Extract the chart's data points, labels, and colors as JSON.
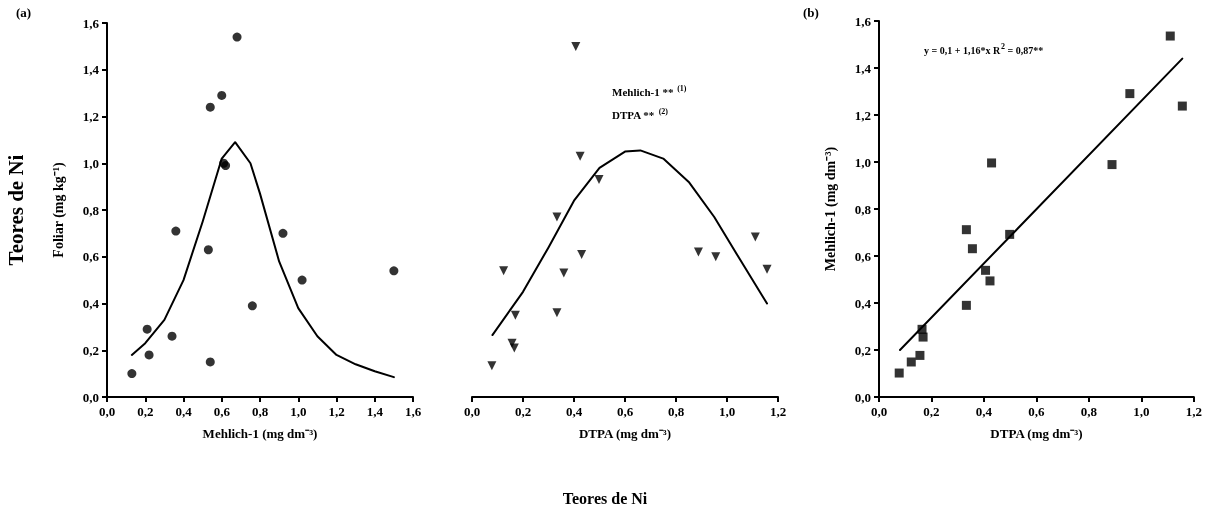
{
  "chart_data": [
    {
      "type": "scatter",
      "ylabel": "Foliar (mg kg⁻¹)",
      "xlabel": "Mehlich-1 (mg dm⁻³)",
      "annotations": [
        "(a)",
        "Teores de Ni"
      ],
      "xlim": [
        0,
        1.6
      ],
      "xticks": [
        {
          "value": 0,
          "label": "0,0"
        },
        {
          "value": 0.2,
          "label": "0,2"
        },
        {
          "value": 0.4,
          "label": "0,4"
        },
        {
          "value": 0.6,
          "label": "0,6"
        },
        {
          "value": 0.8,
          "label": "0,8"
        },
        {
          "value": 1.0,
          "label": "1,0"
        },
        {
          "value": 1.2,
          "label": "1,2"
        },
        {
          "value": 1.4,
          "label": "1,4"
        },
        {
          "value": 1.6,
          "label": "1,6"
        }
      ],
      "ylim": [
        0,
        1.6
      ],
      "yticks": [
        {
          "value": 0,
          "label": "0,0"
        },
        {
          "value": 0.2,
          "label": "0,2"
        },
        {
          "value": 0.4,
          "label": "0,4"
        },
        {
          "value": 0.6,
          "label": "0,6"
        },
        {
          "value": 0.8,
          "label": "0,8"
        },
        {
          "value": 1.0,
          "label": "1,0"
        },
        {
          "value": 1.2,
          "label": "1,2"
        },
        {
          "value": 1.4,
          "label": "1,4"
        },
        {
          "value": 1.6,
          "label": "1,6"
        }
      ],
      "series": [
        {
          "marker": "circle",
          "color": "#000000",
          "x": [
            0.13,
            0.21,
            0.22,
            0.34,
            0.36,
            0.53,
            0.54,
            0.54,
            0.6,
            0.61,
            0.62,
            0.68,
            0.76,
            0.92,
            1.02,
            1.5
          ],
          "values": [
            0.1,
            0.29,
            0.18,
            0.26,
            0.71,
            0.63,
            0.15,
            1.24,
            1.29,
            1.0,
            0.99,
            1.54,
            0.39,
            0.7,
            0.5,
            0.54
          ]
        },
        {
          "type": "line",
          "marker": "none",
          "color": "#000000",
          "x": [
            0.13,
            0.2,
            0.3,
            0.4,
            0.5,
            0.6,
            0.67,
            0.75,
            0.8,
            0.9,
            1.0,
            1.1,
            1.2,
            1.3,
            1.4,
            1.5
          ],
          "values": [
            0.18,
            0.23,
            0.33,
            0.5,
            0.75,
            1.02,
            1.09,
            1.0,
            0.87,
            0.58,
            0.38,
            0.26,
            0.18,
            0.14,
            0.11,
            0.085
          ]
        }
      ]
    },
    {
      "type": "scatter",
      "xlabel": "DTPA (mg dm⁻³)",
      "annotations": [
        "Mehlich-1 ** $^{(1)}$",
        "DTPA ** $^{(2)}$",
        "Teores de Ni"
      ],
      "tick_labels": "x",
      "xlim": [
        0,
        1.2
      ],
      "xticks": [
        {
          "value": 0,
          "label": "0,0"
        },
        {
          "value": 0.2,
          "label": "0,2"
        },
        {
          "value": 0.4,
          "label": "0,4"
        },
        {
          "value": 0.6,
          "label": "0,6"
        },
        {
          "value": 0.8,
          "label": "0,8"
        },
        {
          "value": 1.0,
          "label": "1,0"
        },
        {
          "value": 1.2,
          "label": "1,2"
        }
      ],
      "ylim": [
        0,
        1.6
      ],
      "series": [
        {
          "marker": "triangle",
          "color": "#000000",
          "x": [
            0.078,
            0.124,
            0.17,
            0.157,
            0.166,
            0.333,
            0.333,
            0.36,
            0.407,
            0.424,
            0.43,
            0.498,
            0.888,
            0.956,
            1.111,
            1.157
          ],
          "values": [
            0.134,
            0.54,
            0.35,
            0.23,
            0.21,
            0.77,
            0.36,
            0.53,
            1.5,
            1.03,
            0.61,
            0.93,
            0.62,
            0.6,
            0.685,
            0.546
          ]
        },
        {
          "type": "line",
          "marker": "none",
          "color": "#000000",
          "x": [
            0.08,
            0.2,
            0.3,
            0.4,
            0.5,
            0.6,
            0.66,
            0.75,
            0.85,
            0.95,
            1.05,
            1.157
          ],
          "values": [
            0.265,
            0.45,
            0.64,
            0.84,
            0.98,
            1.05,
            1.055,
            1.02,
            0.92,
            0.77,
            0.59,
            0.4
          ]
        }
      ]
    },
    {
      "type": "scatter",
      "xlabel": "DTPA (mg dm⁻³)",
      "ylabel": "Mehlich-1 (mg dm⁻³)",
      "annotations": [
        "(b)",
        "y = 0,1 + 1,16*x R$^{2}$ = 0,87**"
      ],
      "xlim": [
        0,
        1.2
      ],
      "xticks": [
        {
          "value": 0,
          "label": "0,0"
        },
        {
          "value": 0.2,
          "label": "0,2"
        },
        {
          "value": 0.4,
          "label": "0,4"
        },
        {
          "value": 0.6,
          "label": "0,6"
        },
        {
          "value": 0.8,
          "label": "0,8"
        },
        {
          "value": 1.0,
          "label": "1,0"
        },
        {
          "value": 1.2,
          "label": "1,2"
        }
      ],
      "ylim": [
        0,
        1.6
      ],
      "yticks": [
        {
          "value": 0,
          "label": "0,0"
        },
        {
          "value": 0.2,
          "label": "0,2"
        },
        {
          "value": 0.4,
          "label": "0,4"
        },
        {
          "value": 0.6,
          "label": "0,6"
        },
        {
          "value": 0.8,
          "label": "0,8"
        },
        {
          "value": 1.0,
          "label": "1,0"
        },
        {
          "value": 1.2,
          "label": "1,2"
        },
        {
          "value": 1.4,
          "label": "1,4"
        },
        {
          "value": 1.6,
          "label": "1,6"
        }
      ],
      "series": [
        {
          "marker": "square",
          "color": "#000000",
          "x": [
            0.077,
            0.123,
            0.156,
            0.164,
            0.168,
            0.333,
            0.333,
            0.356,
            0.406,
            0.423,
            0.429,
            0.498,
            0.888,
            0.956,
            1.11,
            1.156
          ],
          "values": [
            0.102,
            0.149,
            0.177,
            0.288,
            0.255,
            0.39,
            0.712,
            0.631,
            0.539,
            0.494,
            0.996,
            0.692,
            0.989,
            1.291,
            1.536,
            1.238
          ]
        },
        {
          "type": "line",
          "marker": "none",
          "color": "#000000",
          "x": [
            0.08,
            1.156
          ],
          "values": [
            0.2,
            1.44
          ]
        }
      ]
    }
  ]
}
